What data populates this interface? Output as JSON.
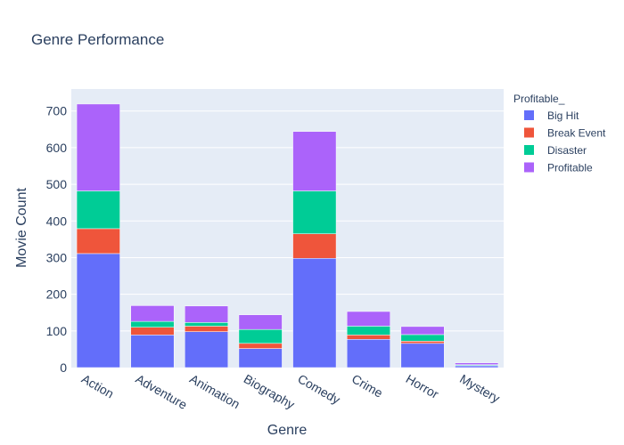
{
  "chart_data": {
    "type": "bar",
    "barmode": "stack",
    "title": "Genre Performance",
    "xlabel": "Genre",
    "ylabel": "Movie Count",
    "ylim": [
      0,
      760
    ],
    "yticks": [
      0,
      100,
      200,
      300,
      400,
      500,
      600,
      700
    ],
    "grid": true,
    "legend_title": "Profitable_",
    "legend_position": "top-right",
    "categories": [
      "Action",
      "Adventure",
      "Animation",
      "Biography",
      "Comedy",
      "Crime",
      "Horror",
      "Mystery"
    ],
    "series": [
      {
        "name": "Big Hit",
        "color": "#636efa",
        "values": [
          311,
          89,
          98,
          52,
          298,
          77,
          66,
          5
        ]
      },
      {
        "name": "Break Event",
        "color": "#ef553b",
        "values": [
          68,
          21,
          15,
          14,
          67,
          12,
          6,
          1
        ]
      },
      {
        "name": "Disaster",
        "color": "#00cc96",
        "values": [
          103,
          16,
          10,
          38,
          117,
          24,
          18,
          2
        ]
      },
      {
        "name": "Profitable",
        "color": "#ab63fa",
        "values": [
          237,
          43,
          45,
          40,
          162,
          40,
          22,
          5
        ]
      }
    ]
  }
}
